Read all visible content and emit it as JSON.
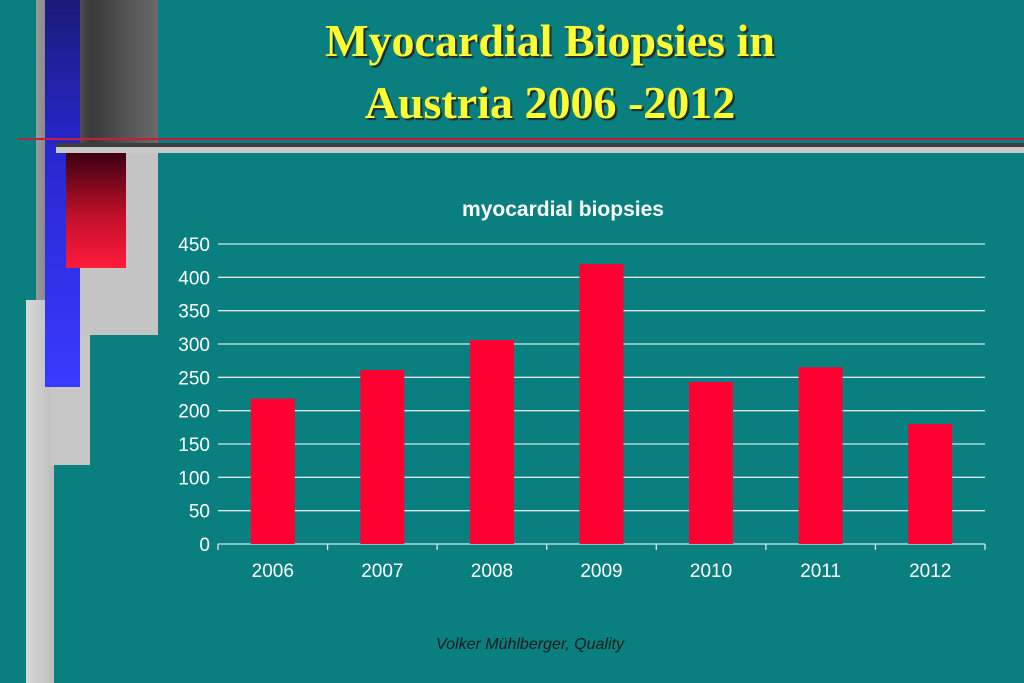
{
  "title_line1": "Myocardial Biopsies in",
  "title_line2": "Austria 2006 -2012",
  "footer": "Volker Mühlberger, Quality",
  "colors": {
    "background": "#0a7f80",
    "title": "#ffff33",
    "bar": "#ff0033",
    "gridline": "#d8e8e8"
  },
  "chart_data": {
    "type": "bar",
    "title": "myocardial biopsies",
    "xlabel": "",
    "ylabel": "",
    "categories": [
      "2006",
      "2007",
      "2008",
      "2009",
      "2010",
      "2011",
      "2012"
    ],
    "values": [
      218,
      261,
      306,
      420,
      243,
      265,
      180
    ],
    "ylim": [
      0,
      450
    ],
    "yticks": [
      0,
      50,
      100,
      150,
      200,
      250,
      300,
      350,
      400,
      450
    ],
    "grid": true,
    "legend": "none"
  }
}
